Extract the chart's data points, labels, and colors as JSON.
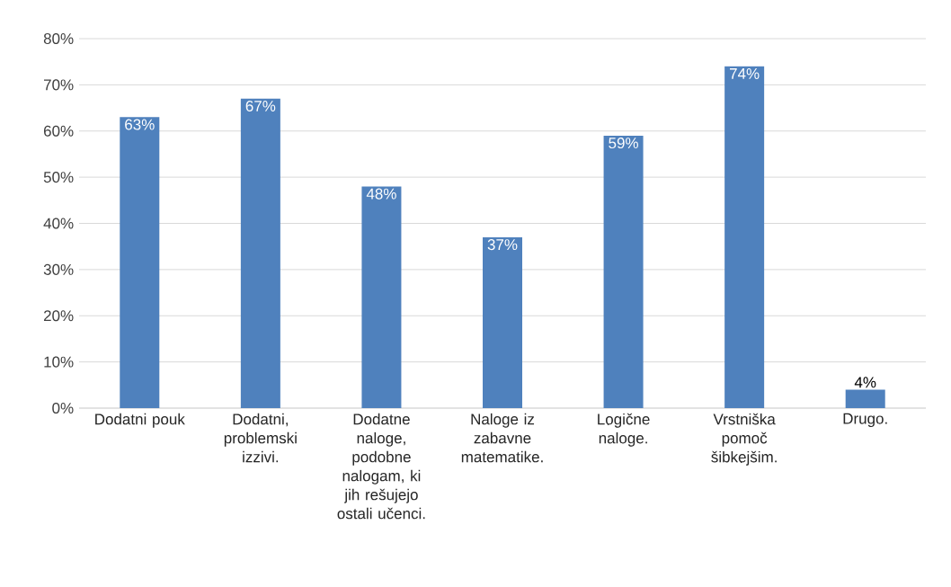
{
  "chart_data": {
    "type": "bar",
    "categories": [
      "Dodatni pouk",
      "Dodatni, problemski izzivi.",
      "Dodatne naloge, podobne nalogam, ki jih rešujejo ostali učenci.",
      "Naloge iz zabavne matematike.",
      "Logične naloge.",
      "Vrstniška pomoč šibkejšim.",
      "Drugo."
    ],
    "values": [
      63,
      67,
      48,
      37,
      59,
      74,
      4
    ],
    "value_labels": [
      "63%",
      "67%",
      "48%",
      "37%",
      "59%",
      "74%",
      "4%"
    ],
    "color": "#4f81bd",
    "ylim": [
      0,
      80
    ],
    "yticks": [
      {
        "value": 0,
        "label": "0%"
      },
      {
        "value": 10,
        "label": "10%"
      },
      {
        "value": 20,
        "label": "20%"
      },
      {
        "value": 30,
        "label": "30%"
      },
      {
        "value": 40,
        "label": "40%"
      },
      {
        "value": 50,
        "label": "50%"
      },
      {
        "value": 60,
        "label": "60%"
      },
      {
        "value": 70,
        "label": "70%"
      },
      {
        "value": 80,
        "label": "80%"
      }
    ],
    "grid": "y"
  }
}
